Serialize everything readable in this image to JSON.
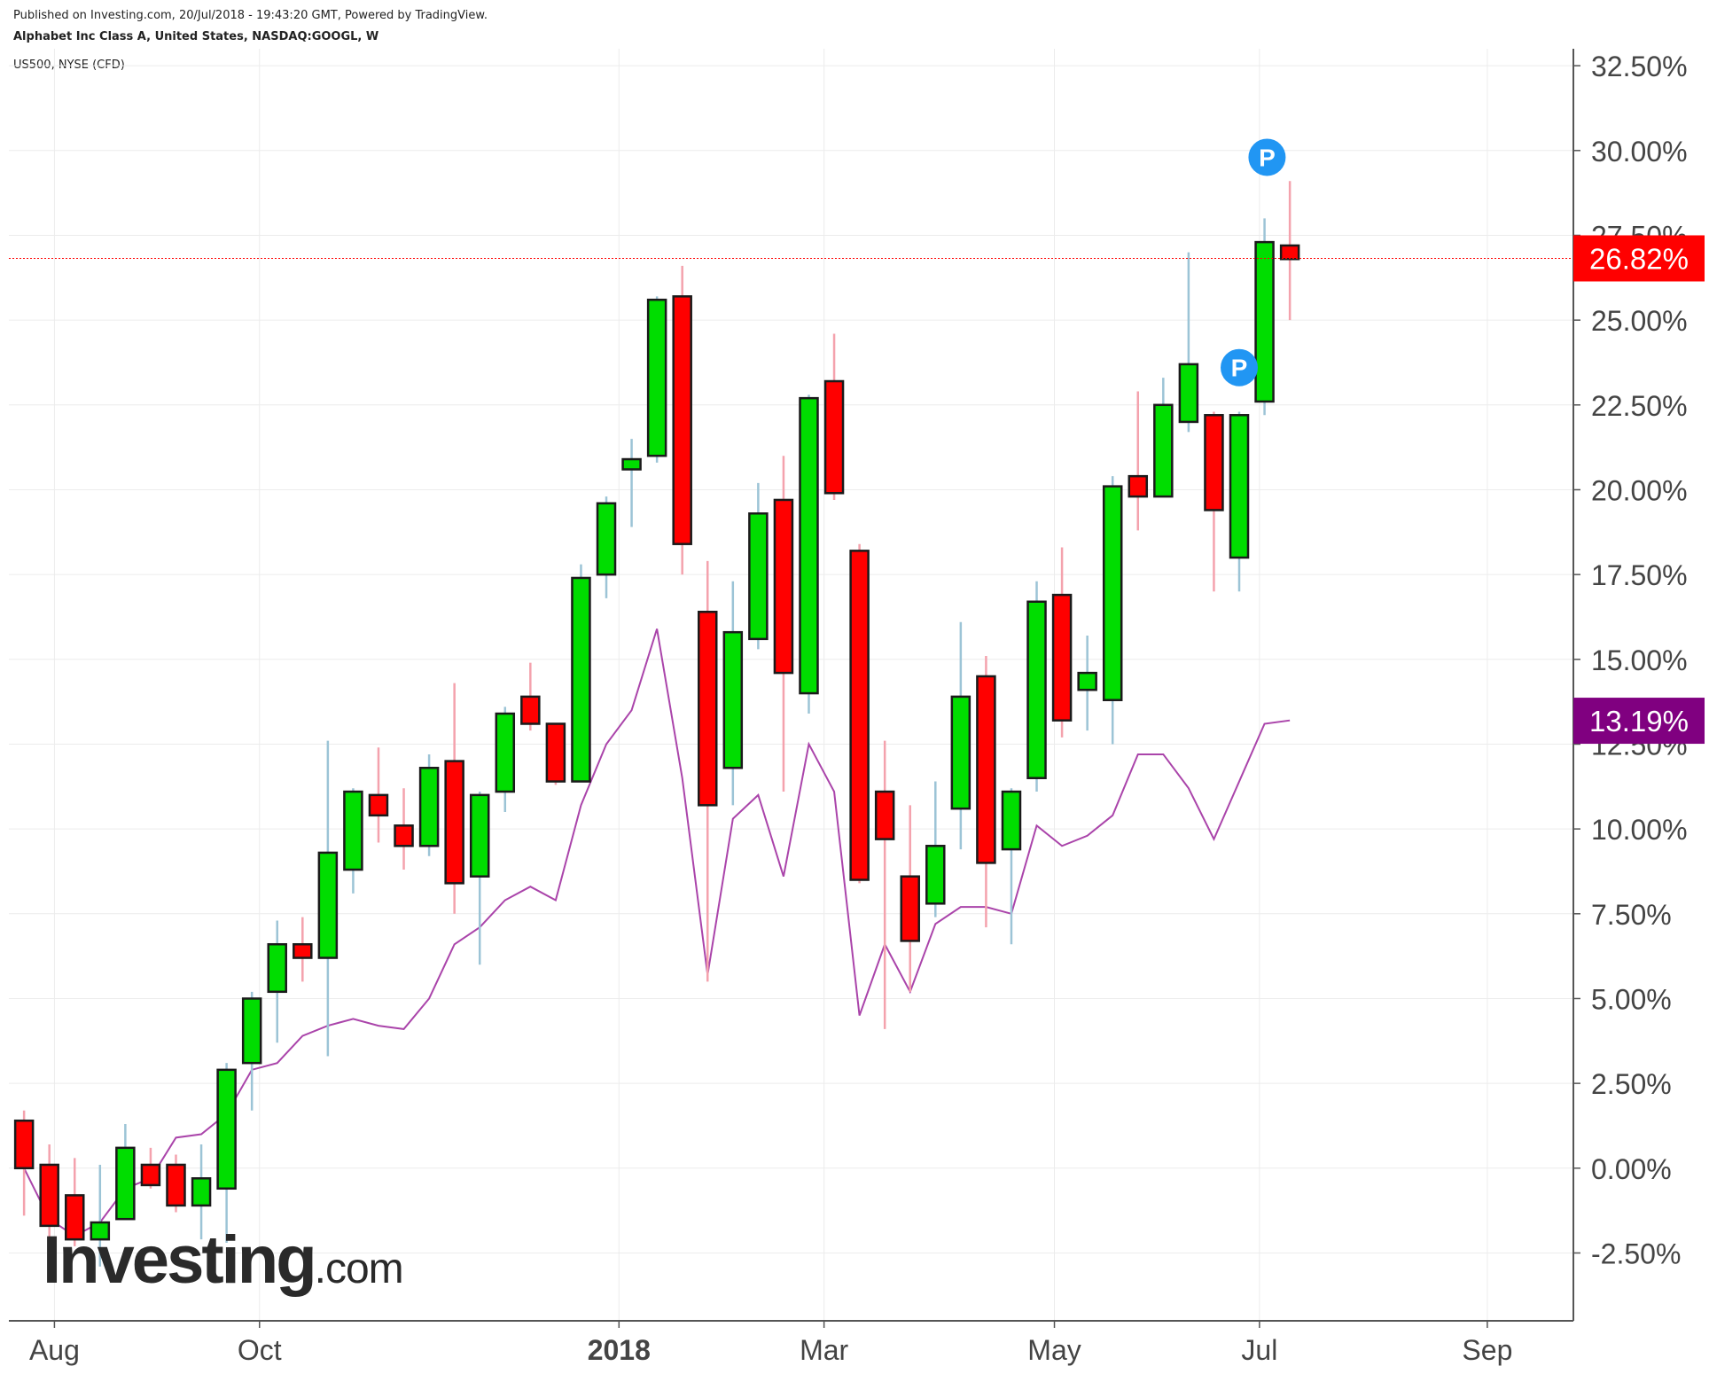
{
  "header": {
    "published": "Published on Investing.com, 20/Jul/2018 - 19:43:20 GMT, Powered by TradingView.",
    "instrument": "Alphabet Inc Class A, United States, NASDAQ:GOOGL, W",
    "comparison": "US500, NYSE (CFD)"
  },
  "logo": {
    "main": "Investing",
    "suffix": ".com"
  },
  "colors": {
    "up": "#00dd00",
    "down": "#ff0000",
    "border": "#1a1a1a",
    "wick_up": "#9cc4d6",
    "wick_down": "#f4a2ad",
    "compare": "#aa44aa",
    "last_price_tag": "#ff0000",
    "compare_tag": "#800080",
    "marker": "#2196f3",
    "grid": "#ececec",
    "axis": "#555555"
  },
  "chart_data": {
    "type": "candlestick",
    "y_axis": {
      "unit": "%",
      "ylim": [
        -4.5,
        33.0
      ],
      "ticks": [
        "-2.50%",
        "0.00%",
        "2.50%",
        "5.00%",
        "7.50%",
        "10.00%",
        "12.50%",
        "15.00%",
        "17.50%",
        "20.00%",
        "22.50%",
        "25.00%",
        "27.50%",
        "30.00%",
        "32.50%"
      ],
      "tick_values": [
        -2.5,
        0,
        2.5,
        5,
        7.5,
        10,
        12.5,
        15,
        17.5,
        20,
        22.5,
        25,
        27.5,
        30,
        32.5
      ]
    },
    "x_axis": {
      "labels": [
        {
          "text": "Aug",
          "week": 1.2,
          "bold": false
        },
        {
          "text": "Oct",
          "week": 9.3,
          "bold": false
        },
        {
          "text": "2018",
          "week": 23.5,
          "bold": true
        },
        {
          "text": "Mar",
          "week": 31.6,
          "bold": false
        },
        {
          "text": "May",
          "week": 40.7,
          "bold": false
        },
        {
          "text": "Jul",
          "week": 48.8,
          "bold": false
        },
        {
          "text": "Sep",
          "week": 57.8,
          "bold": false
        }
      ],
      "xlim": [
        -0.6,
        61.2
      ]
    },
    "series": [
      {
        "name": "Alphabet Inc Class A, NASDAQ:GOOGL, W",
        "type": "candlestick",
        "candles": [
          {
            "o": 1.4,
            "h": 1.7,
            "l": -1.4,
            "c": 0.0
          },
          {
            "o": 0.1,
            "h": 0.7,
            "l": -2.3,
            "c": -1.7
          },
          {
            "o": -0.8,
            "h": 0.3,
            "l": -2.3,
            "c": -2.1
          },
          {
            "o": -2.1,
            "h": 0.1,
            "l": -2.9,
            "c": -1.6
          },
          {
            "o": -1.5,
            "h": 1.3,
            "l": -1.5,
            "c": 0.6
          },
          {
            "o": 0.1,
            "h": 0.6,
            "l": -0.6,
            "c": -0.5
          },
          {
            "o": 0.1,
            "h": 0.4,
            "l": -1.3,
            "c": -1.1
          },
          {
            "o": -1.1,
            "h": 0.7,
            "l": -2.1,
            "c": -0.3
          },
          {
            "o": -0.6,
            "h": 3.1,
            "l": -2.2,
            "c": 2.9
          },
          {
            "o": 3.1,
            "h": 5.2,
            "l": 1.7,
            "c": 5.0
          },
          {
            "o": 5.2,
            "h": 7.3,
            "l": 3.7,
            "c": 6.6
          },
          {
            "o": 6.6,
            "h": 7.4,
            "l": 5.5,
            "c": 6.2
          },
          {
            "o": 6.2,
            "h": 12.6,
            "l": 3.3,
            "c": 9.3
          },
          {
            "o": 8.8,
            "h": 11.2,
            "l": 8.1,
            "c": 11.1
          },
          {
            "o": 11.0,
            "h": 12.4,
            "l": 9.6,
            "c": 10.4
          },
          {
            "o": 10.1,
            "h": 11.2,
            "l": 8.8,
            "c": 9.5
          },
          {
            "o": 9.5,
            "h": 12.2,
            "l": 9.2,
            "c": 11.8
          },
          {
            "o": 12.0,
            "h": 14.3,
            "l": 7.5,
            "c": 8.4
          },
          {
            "o": 8.6,
            "h": 11.1,
            "l": 6.0,
            "c": 11.0
          },
          {
            "o": 11.1,
            "h": 13.6,
            "l": 10.5,
            "c": 13.4
          },
          {
            "o": 13.9,
            "h": 14.9,
            "l": 12.9,
            "c": 13.1
          },
          {
            "o": 13.1,
            "h": 13.1,
            "l": 11.3,
            "c": 11.4
          },
          {
            "o": 11.4,
            "h": 17.8,
            "l": 11.4,
            "c": 17.4
          },
          {
            "o": 17.5,
            "h": 19.8,
            "l": 16.8,
            "c": 19.6
          },
          {
            "o": 20.6,
            "h": 21.5,
            "l": 18.9,
            "c": 20.9
          },
          {
            "o": 21.0,
            "h": 25.7,
            "l": 20.8,
            "c": 25.6
          },
          {
            "o": 25.7,
            "h": 26.6,
            "l": 17.5,
            "c": 18.4
          },
          {
            "o": 16.4,
            "h": 17.9,
            "l": 5.5,
            "c": 10.7
          },
          {
            "o": 11.8,
            "h": 17.3,
            "l": 10.7,
            "c": 15.8
          },
          {
            "o": 15.6,
            "h": 20.2,
            "l": 15.3,
            "c": 19.3
          },
          {
            "o": 19.7,
            "h": 21.0,
            "l": 11.1,
            "c": 14.6
          },
          {
            "o": 14.0,
            "h": 22.8,
            "l": 13.4,
            "c": 22.7
          },
          {
            "o": 23.2,
            "h": 24.6,
            "l": 19.7,
            "c": 19.9
          },
          {
            "o": 18.2,
            "h": 18.4,
            "l": 8.4,
            "c": 8.5
          },
          {
            "o": 11.1,
            "h": 12.6,
            "l": 4.1,
            "c": 9.7
          },
          {
            "o": 8.6,
            "h": 10.7,
            "l": 5.2,
            "c": 6.7
          },
          {
            "o": 7.8,
            "h": 11.4,
            "l": 7.4,
            "c": 9.5
          },
          {
            "o": 10.6,
            "h": 16.1,
            "l": 9.4,
            "c": 13.9
          },
          {
            "o": 14.5,
            "h": 15.1,
            "l": 7.1,
            "c": 9.0
          },
          {
            "o": 9.4,
            "h": 11.2,
            "l": 6.6,
            "c": 11.1
          },
          {
            "o": 11.5,
            "h": 17.3,
            "l": 11.1,
            "c": 16.7
          },
          {
            "o": 16.9,
            "h": 18.3,
            "l": 12.7,
            "c": 13.2
          },
          {
            "o": 14.1,
            "h": 15.7,
            "l": 12.9,
            "c": 14.6
          },
          {
            "o": 13.8,
            "h": 20.4,
            "l": 12.5,
            "c": 20.1
          },
          {
            "o": 20.4,
            "h": 22.9,
            "l": 18.8,
            "c": 19.8
          },
          {
            "o": 19.8,
            "h": 23.3,
            "l": 19.8,
            "c": 22.5
          },
          {
            "o": 22.0,
            "h": 27.0,
            "l": 21.7,
            "c": 23.7
          },
          {
            "o": 22.2,
            "h": 22.3,
            "l": 17.0,
            "c": 19.4
          },
          {
            "o": 18.0,
            "h": 22.3,
            "l": 17.0,
            "c": 22.2
          },
          {
            "o": 22.6,
            "h": 28.0,
            "l": 22.2,
            "c": 27.3
          },
          {
            "o": 27.2,
            "h": 29.1,
            "l": 25.0,
            "c": 26.8
          }
        ]
      },
      {
        "name": "US500, NYSE (CFD)",
        "type": "line",
        "values": [
          0.0,
          -1.5,
          -2.0,
          -1.6,
          -0.6,
          -0.3,
          0.9,
          1.0,
          1.6,
          2.9,
          3.1,
          3.9,
          4.2,
          4.4,
          4.2,
          4.1,
          5.0,
          6.6,
          7.1,
          7.9,
          8.3,
          7.9,
          10.7,
          12.5,
          13.5,
          15.9,
          11.5,
          5.7,
          10.3,
          11.0,
          8.6,
          12.5,
          11.1,
          4.5,
          6.6,
          5.2,
          7.2,
          7.7,
          7.7,
          7.5,
          10.1,
          9.5,
          9.8,
          10.4,
          12.2,
          12.2,
          11.2,
          9.7,
          11.4,
          13.1,
          13.2
        ]
      }
    ],
    "last_values": [
      {
        "label": "26.82%",
        "value": 26.82,
        "series": 0
      },
      {
        "label": "13.19%",
        "value": 13.19,
        "series": 1
      }
    ],
    "price_line": 26.82,
    "markers": [
      {
        "label": "P",
        "week": 48.0,
        "value": 23.6
      },
      {
        "label": "P",
        "week": 49.1,
        "value": 29.8
      }
    ],
    "grid": true
  }
}
